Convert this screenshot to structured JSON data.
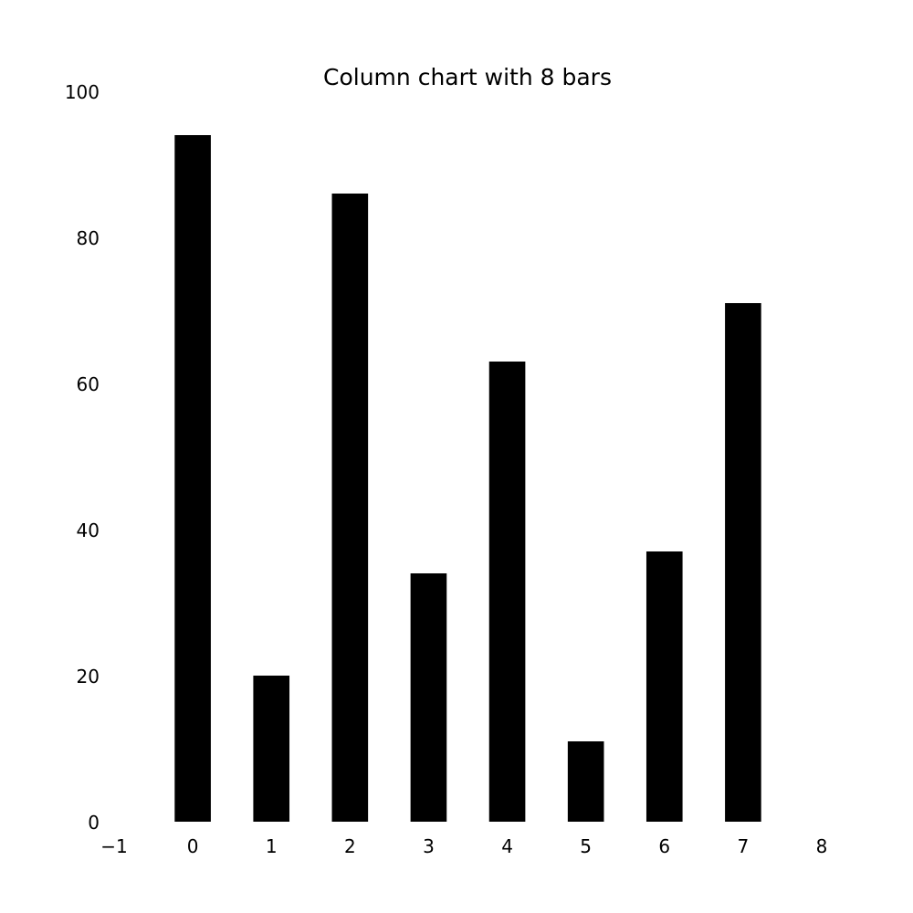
{
  "chart_data": {
    "type": "bar",
    "title": "Column chart with 8 bars",
    "xlabel": "",
    "ylabel": "",
    "categories": [
      0,
      1,
      2,
      3,
      4,
      5,
      6,
      7
    ],
    "values": [
      94,
      20,
      86,
      34,
      63,
      11,
      37,
      71
    ],
    "xlim": [
      -1,
      8
    ],
    "ylim": [
      0,
      100
    ],
    "x_ticks": [
      "−1",
      "0",
      "1",
      "2",
      "3",
      "4",
      "5",
      "6",
      "7",
      "8"
    ],
    "y_ticks": [
      "0",
      "20",
      "40",
      "60",
      "80",
      "100"
    ],
    "bar_color": "#000000",
    "grid": false,
    "legend": "none"
  }
}
